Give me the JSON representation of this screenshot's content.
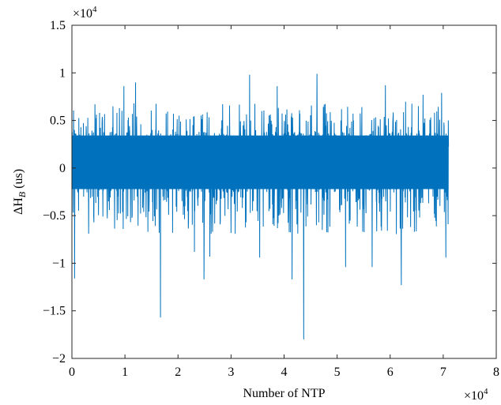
{
  "chart_data": {
    "type": "line",
    "title": "",
    "xlabel": "Number of NTP",
    "ylabel_main": "ΔH",
    "ylabel_sub": "B",
    "ylabel_unit": " (us)",
    "xlim": [
      0,
      80000
    ],
    "ylim": [
      -20000,
      15000
    ],
    "x_ticks": [
      0,
      10000,
      20000,
      30000,
      40000,
      50000,
      60000,
      70000,
      80000
    ],
    "x_tick_labels": [
      "0",
      "1",
      "2",
      "3",
      "4",
      "5",
      "6",
      "7",
      "8"
    ],
    "y_ticks": [
      -20000,
      -15000,
      -10000,
      -5000,
      0,
      5000,
      10000,
      15000
    ],
    "y_tick_labels": [
      "−2",
      "−1.5",
      "−1",
      "−0.5",
      "0",
      "0.5",
      "1",
      "1.5"
    ],
    "x_exponent_base": "×10",
    "x_exponent_power": "4",
    "y_exponent_base": "×10",
    "y_exponent_power": "4",
    "series": [
      {
        "color": "#0072BD",
        "n_points": 71000,
        "core_band": [
          -2600,
          3800
        ],
        "typical_peaks": [
          -7000,
          7000
        ],
        "spikes": [
          {
            "x": 16700,
            "y": -15700
          },
          {
            "x": 24900,
            "y": -11700
          },
          {
            "x": 33500,
            "y": 9800
          },
          {
            "x": 41500,
            "y": -11700
          },
          {
            "x": 43700,
            "y": -18000
          },
          {
            "x": 46200,
            "y": 9900
          },
          {
            "x": 62100,
            "y": -12300
          },
          {
            "x": 12000,
            "y": 9000
          },
          {
            "x": 9800,
            "y": 8600
          },
          {
            "x": 38700,
            "y": 8600
          },
          {
            "x": 59100,
            "y": 8700
          },
          {
            "x": 51600,
            "y": -10400
          },
          {
            "x": 56600,
            "y": -10400
          },
          {
            "x": 66200,
            "y": 7700
          },
          {
            "x": 69700,
            "y": 7900
          },
          {
            "x": 500,
            "y": -11600
          },
          {
            "x": 70500,
            "y": -9400
          },
          {
            "x": 26000,
            "y": -9300
          },
          {
            "x": 35400,
            "y": -9400
          },
          {
            "x": 23100,
            "y": -8800
          }
        ]
      }
    ]
  }
}
